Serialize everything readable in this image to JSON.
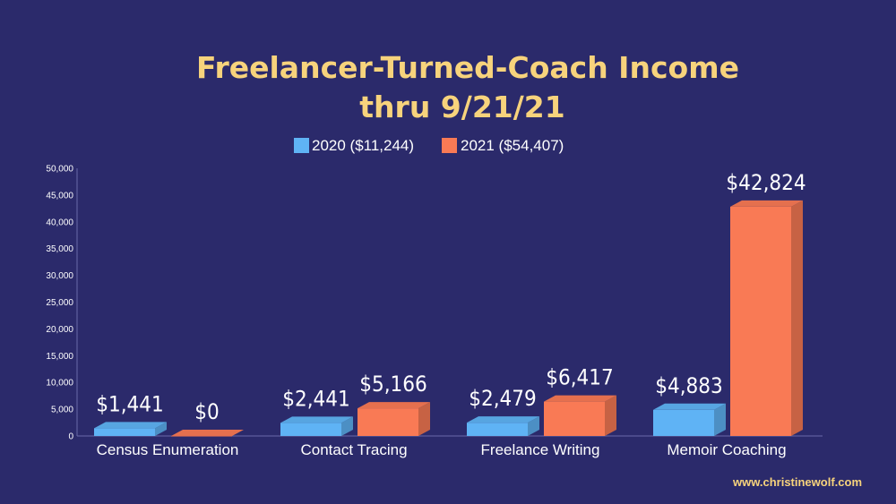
{
  "chart_data": {
    "type": "bar",
    "title_line1": "Freelancer-Turned-Coach Income",
    "title_line2": "thru 9/21/21",
    "categories": [
      "Census Enumeration",
      "Contact Tracing",
      "Freelance Writing",
      "Memoir Coaching"
    ],
    "series": [
      {
        "name": "2020 ($11,244)",
        "values": [
          1441,
          2441,
          2479,
          4883
        ],
        "labels": [
          "$1,441",
          "$2,441",
          "$2,479",
          "$4,883"
        ],
        "color": "#5fb3f5"
      },
      {
        "name": "2021 ($54,407)",
        "values": [
          0,
          5166,
          6417,
          42824
        ],
        "labels": [
          "$0",
          "$5,166",
          "$6,417",
          "$42,824"
        ],
        "color": "#f97a55"
      }
    ],
    "ylim": [
      0,
      50000
    ],
    "yticks": [
      "0",
      "5,000",
      "10,000",
      "15,000",
      "20,000",
      "25,000",
      "30,000",
      "35,000",
      "40,000",
      "45,000",
      "50,000"
    ],
    "legend_position": "top",
    "grid": false
  },
  "footer": {
    "website": "www.christinewolf.com"
  },
  "colors": {
    "background": "#2b2a6b",
    "title": "#f7d37c",
    "axis": "#6a6aa8"
  }
}
